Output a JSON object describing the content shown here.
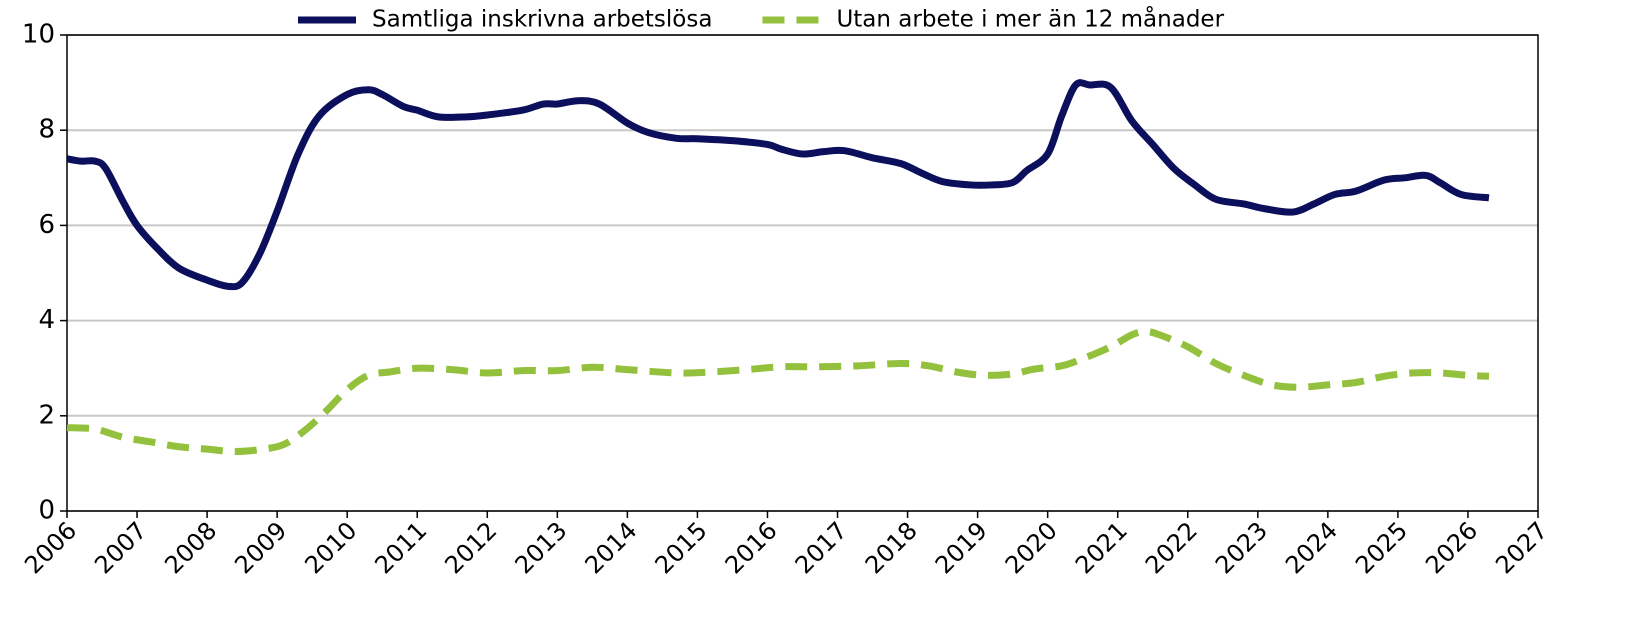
{
  "chart_data": {
    "type": "line",
    "xlim": [
      2006,
      2027
    ],
    "xticks": [
      2006,
      2007,
      2008,
      2009,
      2010,
      2011,
      2012,
      2013,
      2014,
      2015,
      2016,
      2017,
      2018,
      2019,
      2020,
      2021,
      2022,
      2023,
      2024,
      2025,
      2026,
      2027
    ],
    "ylim": [
      0,
      10
    ],
    "yticks": [
      0,
      2,
      4,
      6,
      8,
      10
    ],
    "grid": true,
    "legend": "top",
    "series": [
      {
        "name": "Samtliga inskrivna arbetslösa",
        "color": "#0b0f5c",
        "dashed": false,
        "x": [
          2006.0,
          2006.2,
          2006.4,
          2006.55,
          2006.8,
          2007.0,
          2007.3,
          2007.6,
          2008.0,
          2008.3,
          2008.5,
          2008.75,
          2009.0,
          2009.3,
          2009.6,
          2010.0,
          2010.3,
          2010.5,
          2010.8,
          2011.0,
          2011.3,
          2011.7,
          2012.0,
          2012.5,
          2012.8,
          2013.0,
          2013.3,
          2013.6,
          2014.0,
          2014.3,
          2014.7,
          2015.0,
          2015.5,
          2016.0,
          2016.2,
          2016.5,
          2016.8,
          2017.1,
          2017.5,
          2017.9,
          2018.2,
          2018.5,
          2018.9,
          2019.2,
          2019.5,
          2019.7,
          2020.0,
          2020.2,
          2020.4,
          2020.6,
          2020.9,
          2021.2,
          2021.5,
          2021.8,
          2022.1,
          2022.4,
          2022.8,
          2023.1,
          2023.5,
          2023.8,
          2024.1,
          2024.4,
          2024.8,
          2025.1,
          2025.4,
          2025.6,
          2025.9,
          2026.3
        ],
        "values": [
          7.4,
          7.35,
          7.35,
          7.2,
          6.5,
          6.0,
          5.5,
          5.1,
          4.85,
          4.72,
          4.8,
          5.4,
          6.3,
          7.5,
          8.3,
          8.75,
          8.85,
          8.75,
          8.5,
          8.42,
          8.28,
          8.28,
          8.32,
          8.42,
          8.55,
          8.55,
          8.62,
          8.55,
          8.15,
          7.95,
          7.83,
          7.82,
          7.78,
          7.7,
          7.6,
          7.5,
          7.55,
          7.57,
          7.42,
          7.3,
          7.1,
          6.92,
          6.85,
          6.85,
          6.9,
          7.15,
          7.5,
          8.3,
          8.95,
          8.95,
          8.9,
          8.2,
          7.7,
          7.2,
          6.85,
          6.55,
          6.45,
          6.35,
          6.28,
          6.45,
          6.65,
          6.72,
          6.95,
          7.0,
          7.05,
          6.9,
          6.65,
          6.58
        ]
      },
      {
        "name": "Utan arbete i mer än 12 månader",
        "color": "#94c13d",
        "dashed": true,
        "x": [
          2006.0,
          2006.4,
          2006.8,
          2007.2,
          2007.6,
          2008.0,
          2008.4,
          2008.8,
          2009.1,
          2009.4,
          2009.7,
          2010.0,
          2010.3,
          2010.6,
          2011.0,
          2011.5,
          2012.0,
          2012.5,
          2013.0,
          2013.5,
          2014.0,
          2014.7,
          2015.2,
          2015.7,
          2016.2,
          2016.7,
          2017.3,
          2017.9,
          2018.3,
          2018.7,
          2019.1,
          2019.5,
          2019.8,
          2020.2,
          2020.5,
          2020.9,
          2021.2,
          2021.4,
          2021.6,
          2022.0,
          2022.4,
          2022.8,
          2023.2,
          2023.6,
          2024.0,
          2024.4,
          2024.8,
          2025.2,
          2025.6,
          2026.0,
          2026.3
        ],
        "values": [
          1.75,
          1.72,
          1.55,
          1.45,
          1.35,
          1.3,
          1.25,
          1.3,
          1.4,
          1.7,
          2.1,
          2.55,
          2.85,
          2.92,
          3.0,
          2.97,
          2.9,
          2.95,
          2.95,
          3.02,
          2.97,
          2.9,
          2.92,
          2.97,
          3.03,
          3.03,
          3.05,
          3.1,
          3.05,
          2.92,
          2.85,
          2.88,
          2.98,
          3.05,
          3.2,
          3.45,
          3.7,
          3.77,
          3.7,
          3.45,
          3.1,
          2.85,
          2.65,
          2.6,
          2.65,
          2.7,
          2.83,
          2.9,
          2.9,
          2.85,
          2.83
        ]
      }
    ]
  }
}
